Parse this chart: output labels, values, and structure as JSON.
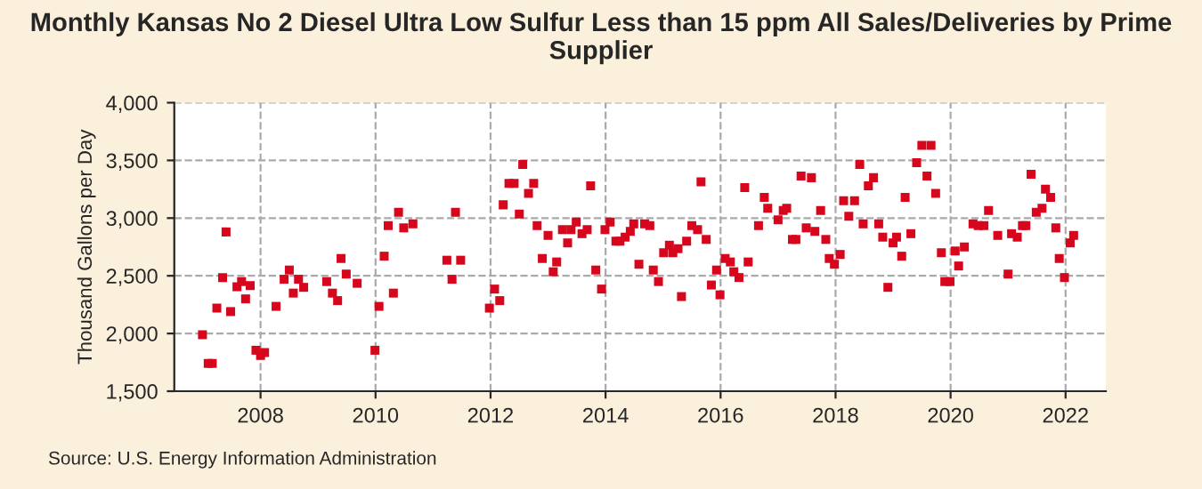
{
  "chart_data": {
    "type": "scatter",
    "title": "Monthly Kansas No 2 Diesel Ultra Low Sulfur Less than 15 ppm All Sales/Deliveries by Prime Supplier",
    "ylabel": "Thousand Gallons per Day",
    "annotations": [
      "Source: U.S. Energy Information Administration"
    ],
    "series": [
      {
        "color": "#d7061c",
        "x": [
          2006.99,
          2007.09,
          2007.16,
          2007.24,
          2007.34,
          2007.4,
          2007.48,
          2007.59,
          2007.67,
          2007.74,
          2007.82,
          2007.92,
          2008.0,
          2008.07,
          2008.27,
          2008.41,
          2008.5,
          2008.57,
          2008.66,
          2008.75,
          2009.15,
          2009.25,
          2009.34,
          2009.4,
          2009.49,
          2009.68,
          2009.99,
          2010.06,
          2010.15,
          2010.22,
          2010.31,
          2010.4,
          2010.49,
          2010.65,
          2011.24,
          2011.33,
          2011.39,
          2011.48,
          2011.98,
          2012.07,
          2012.16,
          2012.22,
          2012.32,
          2012.41,
          2012.5,
          2012.56,
          2012.66,
          2012.75,
          2012.81,
          2012.9,
          2013.0,
          2013.09,
          2013.15,
          2013.25,
          2013.34,
          2013.4,
          2013.49,
          2013.59,
          2013.68,
          2013.74,
          2013.83,
          2013.93,
          2013.99,
          2014.08,
          2014.18,
          2014.25,
          2014.34,
          2014.43,
          2014.49,
          2014.58,
          2014.68,
          2014.77,
          2014.83,
          2014.92,
          2015.01,
          2015.11,
          2015.17,
          2015.26,
          2015.32,
          2015.41,
          2015.5,
          2015.6,
          2015.66,
          2015.75,
          2015.84,
          2015.93,
          2015.99,
          2016.08,
          2016.17,
          2016.23,
          2016.32,
          2016.42,
          2016.48,
          2016.66,
          2016.76,
          2016.82,
          2017.0,
          2017.09,
          2017.15,
          2017.25,
          2017.31,
          2017.4,
          2017.49,
          2017.58,
          2017.64,
          2017.74,
          2017.83,
          2017.89,
          2017.98,
          2018.08,
          2018.14,
          2018.23,
          2018.33,
          2018.42,
          2018.48,
          2018.57,
          2018.66,
          2018.75,
          2018.82,
          2018.91,
          2019.0,
          2019.06,
          2019.15,
          2019.21,
          2019.31,
          2019.41,
          2019.5,
          2019.59,
          2019.66,
          2019.74,
          2019.84,
          2019.9,
          2019.99,
          2020.08,
          2020.14,
          2020.24,
          2020.39,
          2020.48,
          2020.58,
          2020.66,
          2020.82,
          2021.0,
          2021.06,
          2021.16,
          2021.25,
          2021.31,
          2021.4,
          2021.49,
          2021.59,
          2021.65,
          2021.74,
          2021.83,
          2021.89,
          2021.98,
          2022.08,
          2022.14
        ],
        "values": [
          1990,
          1740,
          1740,
          2220,
          2485,
          2880,
          2190,
          2405,
          2450,
          2300,
          2415,
          1855,
          1810,
          1835,
          2235,
          2470,
          2550,
          2350,
          2470,
          2400,
          2450,
          2350,
          2285,
          2650,
          2515,
          2435,
          1855,
          2235,
          2670,
          2935,
          2350,
          3050,
          2915,
          2950,
          2635,
          2470,
          3050,
          2635,
          2220,
          2385,
          2285,
          3115,
          3300,
          3300,
          3035,
          3465,
          3215,
          3300,
          2935,
          2650,
          2850,
          2535,
          2620,
          2900,
          2785,
          2900,
          2965,
          2865,
          2900,
          3280,
          2550,
          2385,
          2900,
          2965,
          2800,
          2800,
          2835,
          2885,
          2950,
          2600,
          2950,
          2935,
          2550,
          2450,
          2700,
          2765,
          2700,
          2735,
          2320,
          2800,
          2935,
          2900,
          3315,
          2815,
          2420,
          2550,
          2335,
          2650,
          2620,
          2535,
          2485,
          3265,
          2620,
          2935,
          3180,
          3085,
          2985,
          3065,
          3085,
          2815,
          2815,
          3365,
          2915,
          3350,
          2885,
          3065,
          2815,
          2650,
          2600,
          2685,
          3150,
          3015,
          3150,
          3465,
          2950,
          3280,
          3350,
          2950,
          2835,
          2400,
          2785,
          2835,
          2670,
          3180,
          2865,
          3480,
          3630,
          3365,
          3630,
          3215,
          2700,
          2450,
          2450,
          2715,
          2585,
          2750,
          2950,
          2935,
          2935,
          3065,
          2850,
          2515,
          2865,
          2835,
          2935,
          2935,
          3380,
          3050,
          3085,
          3250,
          3180,
          2915,
          2650,
          2485,
          2785,
          2850
        ]
      }
    ],
    "xlim": [
      2006.5,
      2022.7
    ],
    "xticks": [
      2008,
      2010,
      2012,
      2014,
      2016,
      2018,
      2020,
      2022
    ],
    "ylim": [
      1500,
      4000
    ],
    "yticks": [
      {
        "value": 1500,
        "label": "1,500"
      },
      {
        "value": 2000,
        "label": "2,000"
      },
      {
        "value": 2500,
        "label": "2,500"
      },
      {
        "value": 3000,
        "label": "3,000"
      },
      {
        "value": 3500,
        "label": "3,500"
      },
      {
        "value": 4000,
        "label": "4,000"
      }
    ],
    "grid": true,
    "marker": "square",
    "line_style": "dashed",
    "legend": false
  }
}
